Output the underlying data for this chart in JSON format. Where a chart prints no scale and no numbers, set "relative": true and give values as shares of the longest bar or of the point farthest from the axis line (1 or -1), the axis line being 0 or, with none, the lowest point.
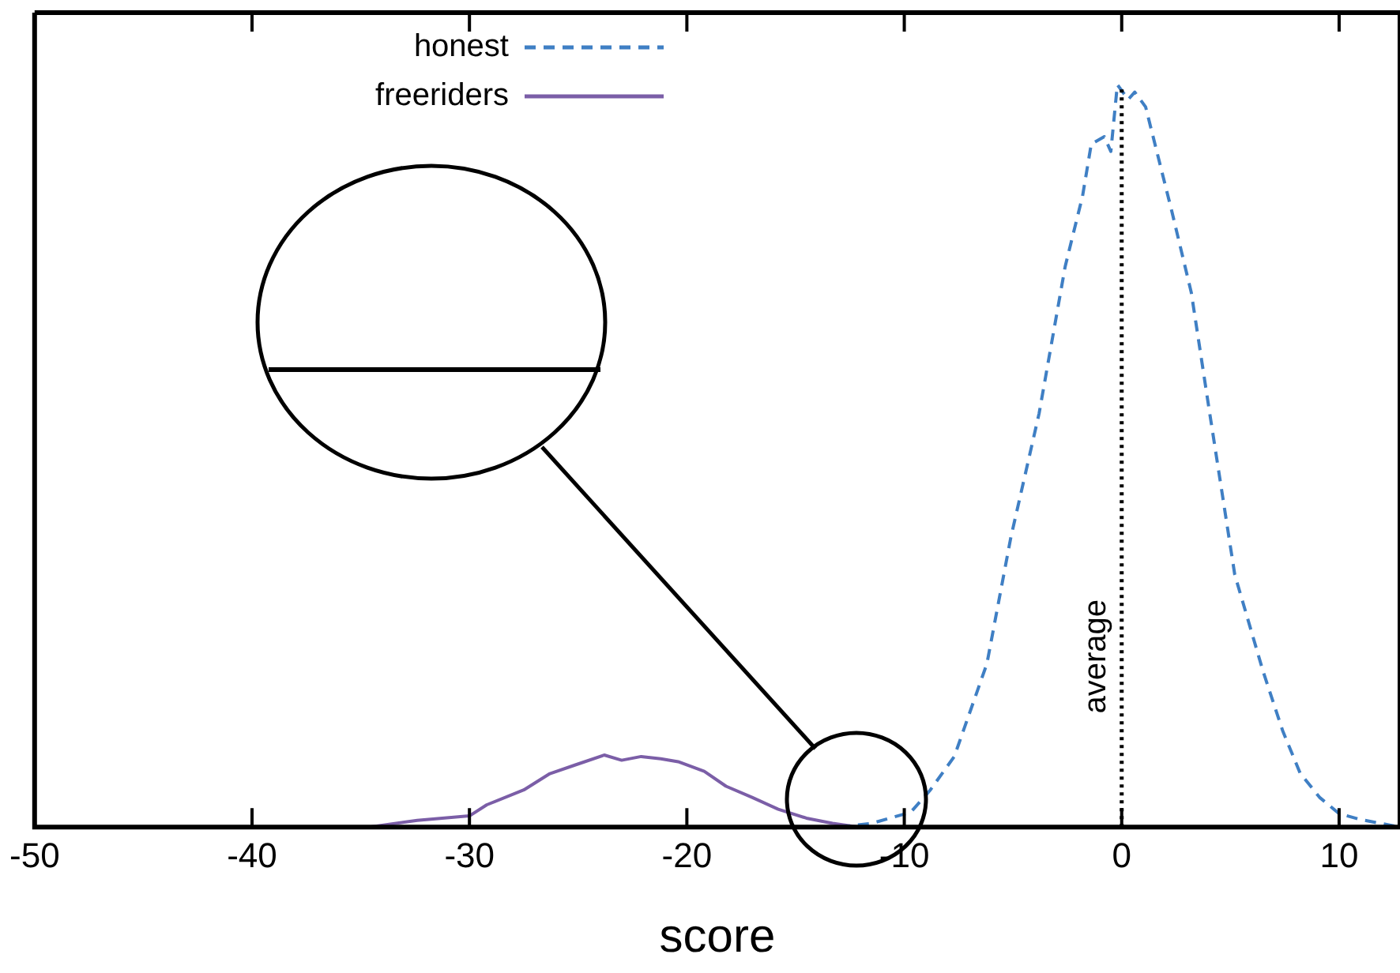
{
  "chart_data": {
    "type": "line",
    "relative": true,
    "xlabel": "score",
    "xlim": [
      -50,
      12.8
    ],
    "xticks": [
      -50,
      -40,
      -30,
      -20,
      -10,
      0,
      10
    ],
    "series": [
      {
        "name": "honest",
        "color": "#3f7fc4",
        "line_style": "dashed",
        "x": [
          -13,
          -11.5,
          -9.7,
          -8.8,
          -7.7,
          -6.2,
          -5.1,
          -3.8,
          -2.6,
          -1.8,
          -1.4,
          -0.8,
          -0.5,
          -0.2,
          0.3,
          0.6,
          1.1,
          2.3,
          3.2,
          4.05,
          5.2,
          6.5,
          7.4,
          8.2,
          9.1,
          10,
          11,
          11.9,
          12.8
        ],
        "values": [
          0,
          0.005,
          0.02,
          0.05,
          0.095,
          0.22,
          0.39,
          0.557,
          0.755,
          0.85,
          0.92,
          0.93,
          0.91,
          1.0,
          0.98,
          0.99,
          0.97,
          0.83,
          0.72,
          0.557,
          0.34,
          0.21,
          0.13,
          0.073,
          0.04,
          0.018,
          0.01,
          0.005,
          0
        ]
      },
      {
        "name": "freeriders",
        "color": "#7b5ea7",
        "line_style": "solid",
        "x": [
          -34.6,
          -32.4,
          -30,
          -29.2,
          -27.5,
          -26.3,
          -25.1,
          -23.8,
          -23,
          -22.1,
          -21.2,
          -20.4,
          -19.2,
          -18.2,
          -17,
          -15.8,
          -14.5,
          -13.3,
          -12.1
        ],
        "values": [
          0,
          0.009,
          0.015,
          0.03,
          0.05,
          0.072,
          0.084,
          0.097,
          0.09,
          0.095,
          0.092,
          0.088,
          0.075,
          0.055,
          0.04,
          0.024,
          0.012,
          0.005,
          0
        ]
      }
    ],
    "ref_lines": [
      {
        "axis": "x",
        "value": 0,
        "label": "average",
        "line_style": "dotted",
        "color": "#000000"
      }
    ],
    "legend": "top",
    "grid": false,
    "marker": "none"
  }
}
